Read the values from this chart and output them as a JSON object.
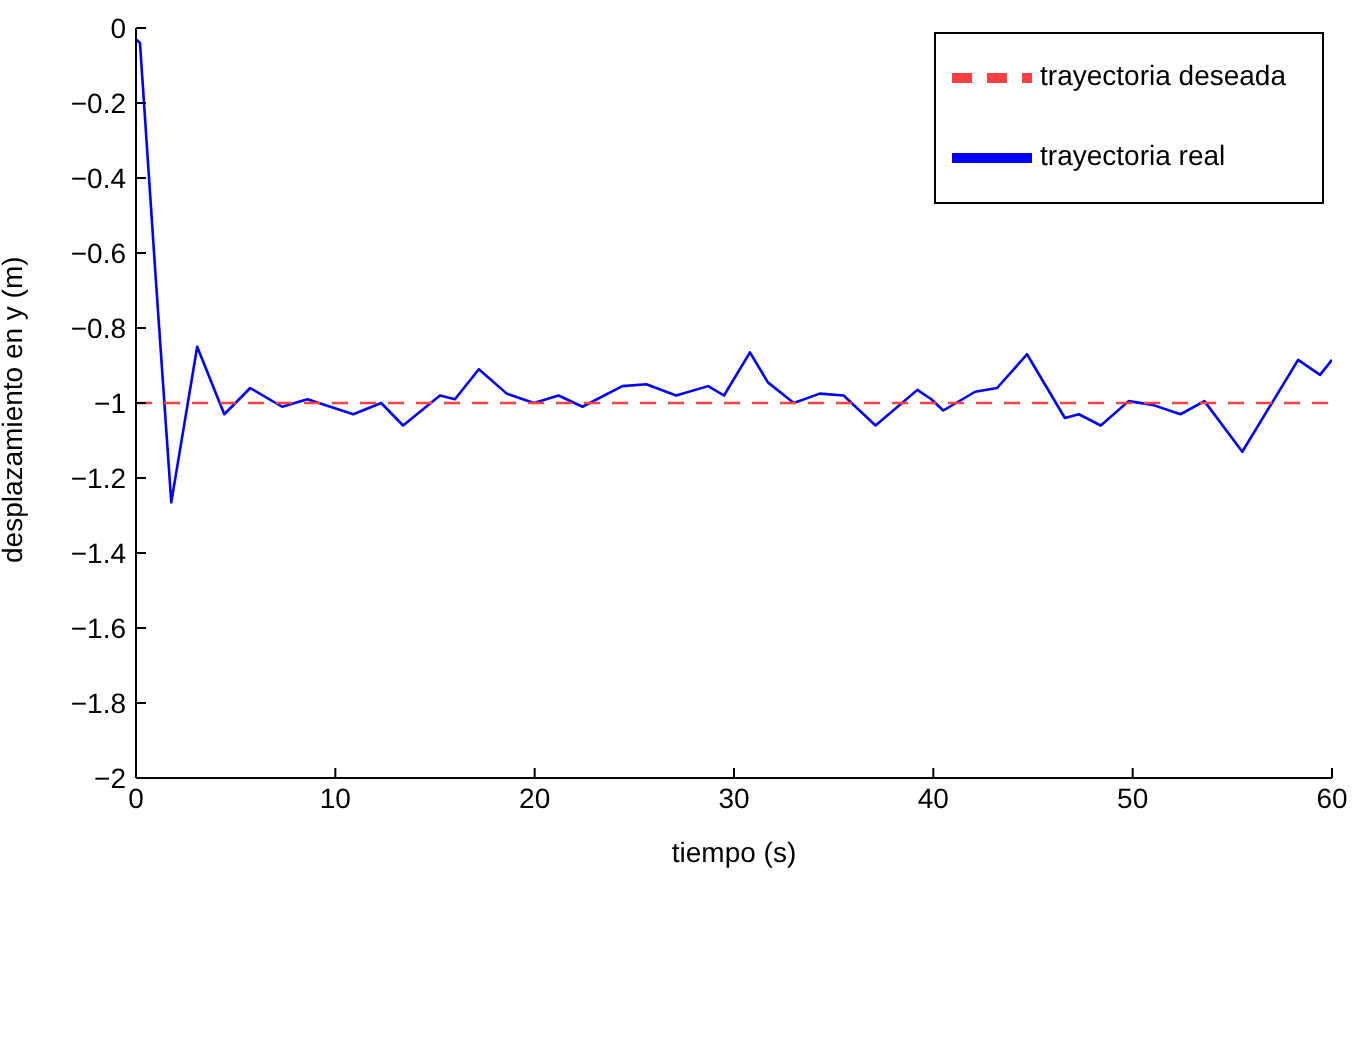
{
  "chart_data": {
    "type": "line",
    "xlabel": "tiempo (s)",
    "ylabel": "desplazamiento en y (m)",
    "xlim": [
      0,
      60
    ],
    "xticks": [
      0,
      10,
      20,
      30,
      40,
      50,
      60
    ],
    "ylim": [
      -2,
      0
    ],
    "yticks": [
      0,
      {
        "value": -0.2,
        "label": "−0.2"
      },
      {
        "value": -0.4,
        "label": "−0.4"
      },
      {
        "value": -0.6,
        "label": "−0.6"
      },
      {
        "value": -0.8,
        "label": "−0.8"
      },
      {
        "value": -1,
        "label": "−1"
      },
      {
        "value": -1.2,
        "label": "−1.2"
      },
      {
        "value": -1.4,
        "label": "−1.4"
      },
      {
        "value": -1.6,
        "label": "−1.6"
      },
      {
        "value": -1.8,
        "label": "−1.8"
      },
      {
        "value": -2,
        "label": "−2"
      }
    ],
    "grid": false,
    "legend": "top right",
    "marker": "none",
    "series": [
      {
        "name": "trayectoria real",
        "color": "#0000ff",
        "line_style": "solid",
        "x": [
          0,
          0.2,
          1.02,
          1.77,
          3.07,
          4.43,
          5.73,
          7.33,
          8.6,
          10.9,
          12.3,
          13.4,
          15.25,
          16.0,
          17.2,
          18.6,
          19.96,
          21.2,
          22.4,
          24.4,
          25.6,
          27.1,
          28.7,
          29.5,
          30.8,
          31.7,
          33.0,
          34.3,
          35.5,
          37.1,
          39.2,
          39.9,
          40.5,
          42.1,
          43.2,
          44.7,
          46.6,
          47.3,
          48.4,
          49.8,
          51.0,
          52.4,
          53.6,
          55.5,
          58.3,
          59.4,
          60
        ],
        "values": [
          -0.03,
          -0.04,
          -0.69,
          -1.265,
          -0.85,
          -1.03,
          -0.96,
          -1.01,
          -0.99,
          -1.03,
          -1.0,
          -1.06,
          -0.98,
          -0.99,
          -0.91,
          -0.975,
          -1.0,
          -0.98,
          -1.01,
          -0.955,
          -0.95,
          -0.98,
          -0.955,
          -0.98,
          -0.865,
          -0.945,
          -1.0,
          -0.975,
          -0.98,
          -1.06,
          -0.965,
          -0.99,
          -1.02,
          -0.97,
          -0.96,
          -0.87,
          -1.04,
          -1.03,
          -1.06,
          -0.995,
          -1.005,
          -1.03,
          -0.995,
          -1.13,
          -0.885,
          -0.925,
          -0.885
        ]
      },
      {
        "name": "trayectoria deseada",
        "color": "#ff4040",
        "line_style": "dashed",
        "x": [
          0,
          60
        ],
        "values": [
          -1,
          -1
        ]
      }
    ]
  }
}
